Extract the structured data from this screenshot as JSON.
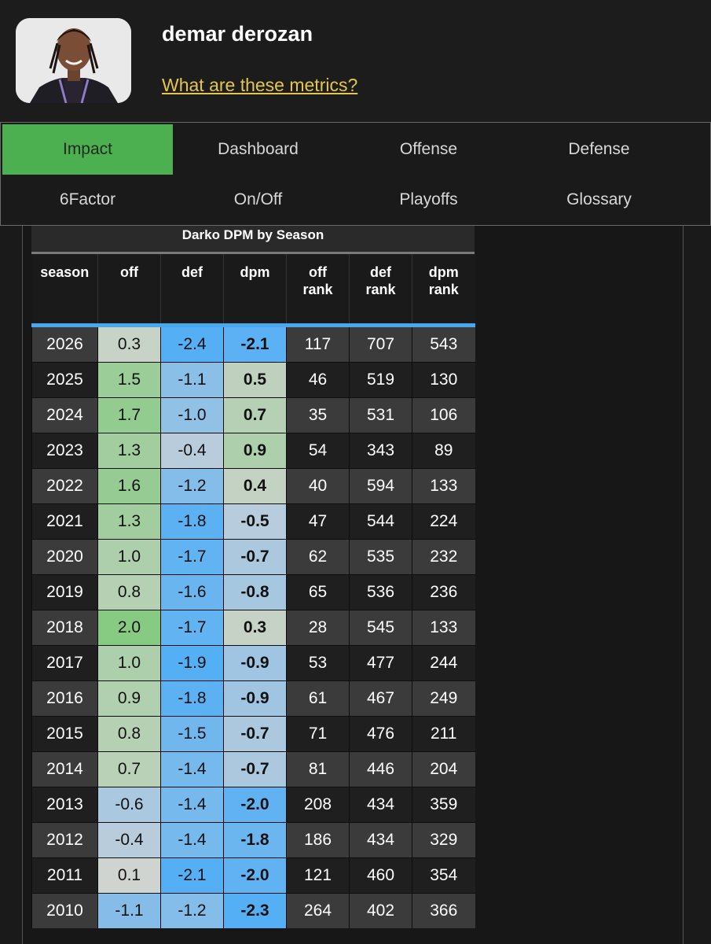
{
  "header": {
    "player_name": "demar derozan",
    "metrics_link": "What are these metrics?"
  },
  "tabs": [
    {
      "label": "Impact",
      "active": true
    },
    {
      "label": "Dashboard",
      "active": false
    },
    {
      "label": "Offense",
      "active": false
    },
    {
      "label": "Defense",
      "active": false
    },
    {
      "label": "6Factor",
      "active": false
    },
    {
      "label": "On/Off",
      "active": false
    },
    {
      "label": "Playoffs",
      "active": false
    },
    {
      "label": "Glossary",
      "active": false
    }
  ],
  "colors": {
    "active_tab": "#4caf50",
    "link": "#e5c64a",
    "header_rule": "#47a8ef"
  },
  "table": {
    "title": "Darko DPM by Season",
    "columns": [
      [
        "season"
      ],
      [
        "off"
      ],
      [
        "def"
      ],
      [
        "dpm"
      ],
      [
        "off",
        "rank"
      ],
      [
        "def",
        "rank"
      ],
      [
        "dpm",
        "rank"
      ]
    ],
    "rows": [
      {
        "season": "2026",
        "off": "0.3",
        "def": "-2.4",
        "dpm": "-2.1",
        "off_rank": "117",
        "def_rank": "707",
        "dpm_rank": "543"
      },
      {
        "season": "2025",
        "off": "1.5",
        "def": "-1.1",
        "dpm": "0.5",
        "off_rank": "46",
        "def_rank": "519",
        "dpm_rank": "130"
      },
      {
        "season": "2024",
        "off": "1.7",
        "def": "-1.0",
        "dpm": "0.7",
        "off_rank": "35",
        "def_rank": "531",
        "dpm_rank": "106"
      },
      {
        "season": "2023",
        "off": "1.3",
        "def": "-0.4",
        "dpm": "0.9",
        "off_rank": "54",
        "def_rank": "343",
        "dpm_rank": "89"
      },
      {
        "season": "2022",
        "off": "1.6",
        "def": "-1.2",
        "dpm": "0.4",
        "off_rank": "40",
        "def_rank": "594",
        "dpm_rank": "133"
      },
      {
        "season": "2021",
        "off": "1.3",
        "def": "-1.8",
        "dpm": "-0.5",
        "off_rank": "47",
        "def_rank": "544",
        "dpm_rank": "224"
      },
      {
        "season": "2020",
        "off": "1.0",
        "def": "-1.7",
        "dpm": "-0.7",
        "off_rank": "62",
        "def_rank": "535",
        "dpm_rank": "232"
      },
      {
        "season": "2019",
        "off": "0.8",
        "def": "-1.6",
        "dpm": "-0.8",
        "off_rank": "65",
        "def_rank": "536",
        "dpm_rank": "236"
      },
      {
        "season": "2018",
        "off": "2.0",
        "def": "-1.7",
        "dpm": "0.3",
        "off_rank": "28",
        "def_rank": "545",
        "dpm_rank": "133"
      },
      {
        "season": "2017",
        "off": "1.0",
        "def": "-1.9",
        "dpm": "-0.9",
        "off_rank": "53",
        "def_rank": "477",
        "dpm_rank": "244"
      },
      {
        "season": "2016",
        "off": "0.9",
        "def": "-1.8",
        "dpm": "-0.9",
        "off_rank": "61",
        "def_rank": "467",
        "dpm_rank": "249"
      },
      {
        "season": "2015",
        "off": "0.8",
        "def": "-1.5",
        "dpm": "-0.7",
        "off_rank": "71",
        "def_rank": "476",
        "dpm_rank": "211"
      },
      {
        "season": "2014",
        "off": "0.7",
        "def": "-1.4",
        "dpm": "-0.7",
        "off_rank": "81",
        "def_rank": "446",
        "dpm_rank": "204"
      },
      {
        "season": "2013",
        "off": "-0.6",
        "def": "-1.4",
        "dpm": "-2.0",
        "off_rank": "208",
        "def_rank": "434",
        "dpm_rank": "359"
      },
      {
        "season": "2012",
        "off": "-0.4",
        "def": "-1.4",
        "dpm": "-1.8",
        "off_rank": "186",
        "def_rank": "434",
        "dpm_rank": "329"
      },
      {
        "season": "2011",
        "off": "0.1",
        "def": "-2.1",
        "dpm": "-2.0",
        "off_rank": "121",
        "def_rank": "460",
        "dpm_rank": "354"
      },
      {
        "season": "2010",
        "off": "-1.1",
        "def": "-1.2",
        "dpm": "-2.3",
        "off_rank": "264",
        "def_rank": "402",
        "dpm_rank": "366"
      }
    ]
  }
}
